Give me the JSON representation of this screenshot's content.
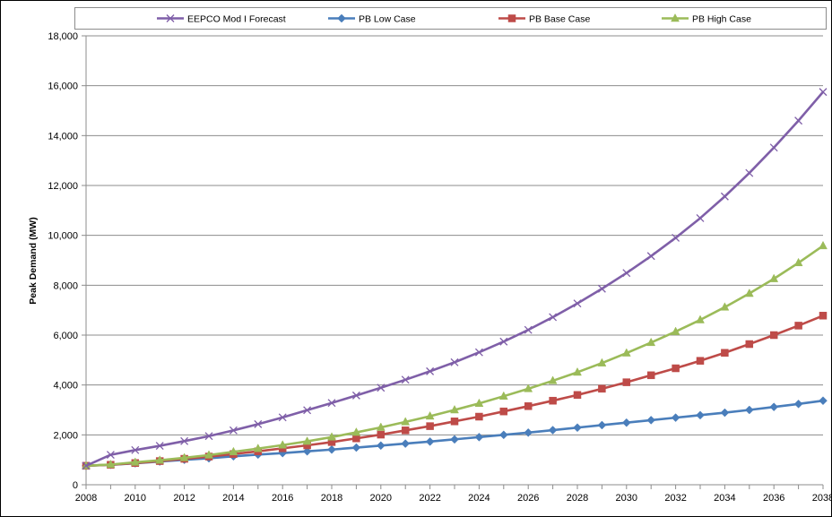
{
  "chart_data": {
    "type": "line",
    "title": "",
    "xlabel": "",
    "ylabel": "Peak Demand (MW)",
    "xlim": [
      2008,
      2038
    ],
    "ylim": [
      0,
      18000
    ],
    "x_tick_labels": [
      "2008",
      "2010",
      "2012",
      "2014",
      "2016",
      "2018",
      "2020",
      "2022",
      "2024",
      "2026",
      "2028",
      "2030",
      "2032",
      "2034",
      "2036",
      "2038"
    ],
    "y_tick_labels": [
      "0",
      "2,000",
      "4,000",
      "6,000",
      "8,000",
      "10,000",
      "12,000",
      "14,000",
      "16,000",
      "18,000"
    ],
    "grid": "horizontal",
    "legend_position": "top",
    "x": [
      2008,
      2009,
      2010,
      2011,
      2012,
      2013,
      2014,
      2015,
      2016,
      2017,
      2018,
      2019,
      2020,
      2021,
      2022,
      2023,
      2024,
      2025,
      2026,
      2027,
      2028,
      2029,
      2030,
      2031,
      2032,
      2033,
      2034,
      2035,
      2036,
      2037,
      2038
    ],
    "series": [
      {
        "name": "EEPCO Mod I Forecast",
        "color": "#7f5fa8",
        "marker": "x",
        "values": [
          760,
          1200,
          1390,
          1560,
          1750,
          1950,
          2180,
          2430,
          2700,
          2990,
          3280,
          3580,
          3890,
          4210,
          4550,
          4910,
          5310,
          5740,
          6210,
          6720,
          7270,
          7860,
          8490,
          9170,
          9900,
          10690,
          11560,
          12500,
          13520,
          14600,
          15750
        ]
      },
      {
        "name": "PB Low Case",
        "color": "#4a7ebb",
        "marker": "diamond",
        "values": [
          760,
          800,
          860,
          930,
          1000,
          1060,
          1140,
          1210,
          1270,
          1340,
          1410,
          1490,
          1570,
          1650,
          1730,
          1820,
          1910,
          2000,
          2090,
          2190,
          2290,
          2390,
          2490,
          2590,
          2690,
          2790,
          2890,
          3000,
          3120,
          3240,
          3370
        ]
      },
      {
        "name": "PB Base Case",
        "color": "#be4b48",
        "marker": "square",
        "values": [
          760,
          800,
          870,
          950,
          1040,
          1130,
          1230,
          1340,
          1460,
          1580,
          1710,
          1860,
          2010,
          2180,
          2350,
          2540,
          2730,
          2940,
          3150,
          3370,
          3600,
          3850,
          4110,
          4390,
          4670,
          4970,
          5290,
          5640,
          6000,
          6380,
          6780
        ]
      },
      {
        "name": "PB High Case",
        "color": "#9bbb59",
        "marker": "triangle",
        "values": [
          760,
          810,
          900,
          980,
          1080,
          1190,
          1320,
          1450,
          1590,
          1740,
          1910,
          2100,
          2300,
          2520,
          2750,
          3000,
          3260,
          3550,
          3850,
          4170,
          4510,
          4880,
          5280,
          5700,
          6140,
          6610,
          7120,
          7670,
          8260,
          8900,
          9580
        ]
      }
    ]
  }
}
